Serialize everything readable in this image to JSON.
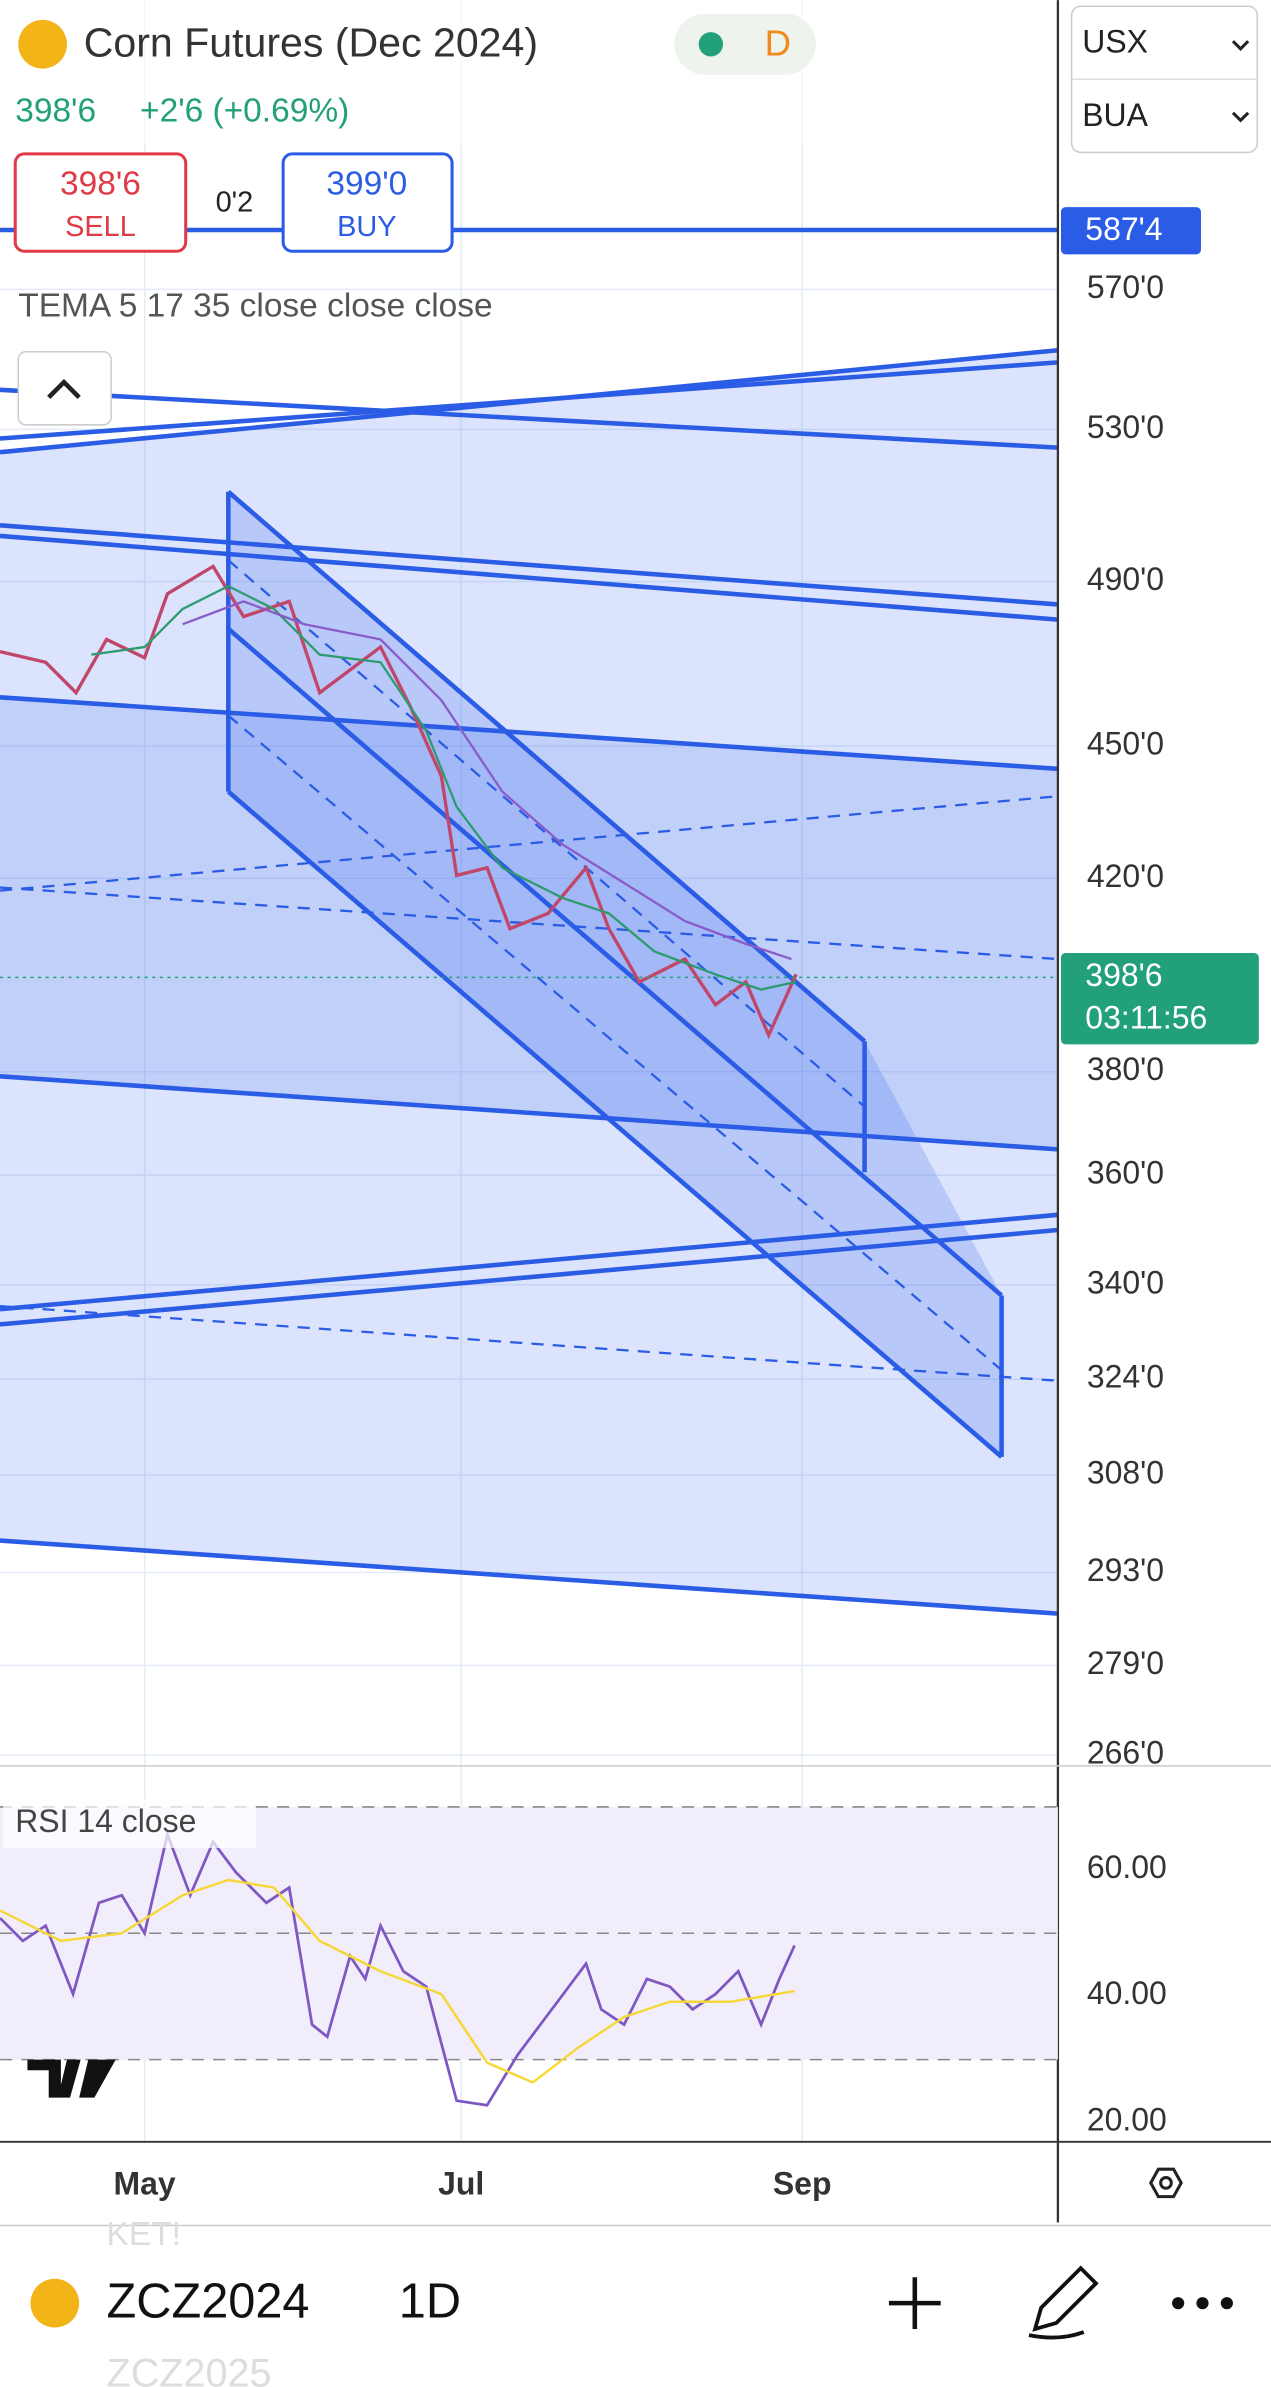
{
  "header": {
    "title": "Corn Futures (Dec 2024)",
    "price": "398'6",
    "change": "+2'6 (+0.69%)",
    "interval_badge": "D"
  },
  "order": {
    "sell_price": "398'6",
    "sell_label": "SELL",
    "spread": "0'2",
    "buy_price": "399'0",
    "buy_label": "BUY"
  },
  "indicator": "TEMA 5 17 35 close close close",
  "selectors": {
    "currency": "USX",
    "unit": "BUA"
  },
  "line_label": "587'4",
  "price_axis": [
    "570'0",
    "530'0",
    "490'0",
    "450'0",
    "420'0",
    "380'0",
    "360'0",
    "340'0",
    "324'0",
    "308'0",
    "293'0",
    "279'0",
    "266'0"
  ],
  "last_price": {
    "price": "398'6",
    "countdown": "03:11:56"
  },
  "rsi": {
    "label": "RSI 14 close",
    "axis": [
      "60.00",
      "40.00",
      "20.00"
    ]
  },
  "time_axis": [
    "May",
    "Jul",
    "Sep"
  ],
  "toolbar": {
    "above": "KET!",
    "symbol": "ZCZ2024",
    "interval": "1D",
    "below": "ZCZ2025"
  }
}
